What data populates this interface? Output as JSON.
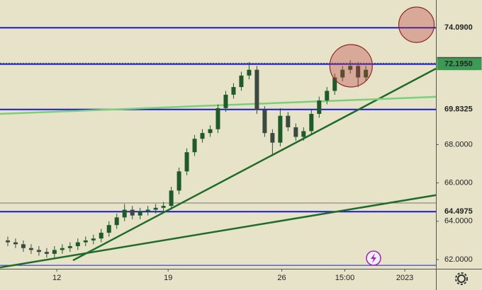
{
  "chart_data": {
    "type": "candlestick",
    "x": [
      0,
      1,
      2,
      3,
      4,
      5,
      6,
      7,
      8,
      9,
      10,
      11,
      12,
      13,
      14,
      15,
      16,
      17,
      18,
      19,
      20,
      21,
      22,
      23,
      24,
      25,
      26,
      27,
      28,
      29,
      30,
      31,
      32,
      33,
      34,
      35,
      36,
      37,
      38,
      39,
      40,
      41,
      42,
      43,
      44,
      45,
      46
    ],
    "open": [
      63.0,
      62.9,
      62.8,
      62.6,
      62.5,
      62.4,
      62.3,
      62.5,
      62.6,
      62.7,
      62.9,
      63.0,
      63.1,
      63.4,
      63.8,
      64.2,
      64.6,
      64.3,
      64.5,
      64.6,
      64.7,
      64.8,
      65.6,
      66.6,
      67.6,
      68.3,
      68.6,
      68.8,
      69.9,
      70.6,
      71.0,
      71.6,
      71.9,
      69.8,
      68.6,
      68.1,
      69.5,
      68.9,
      68.4,
      68.7,
      69.6,
      70.3,
      70.8,
      71.5,
      71.9,
      72.1,
      71.5
    ],
    "high": [
      63.2,
      63.1,
      63.0,
      62.8,
      62.7,
      62.6,
      62.7,
      62.8,
      62.9,
      63.1,
      63.2,
      63.3,
      63.6,
      64.0,
      64.4,
      64.9,
      64.8,
      64.7,
      64.8,
      64.9,
      65.0,
      65.8,
      66.8,
      67.8,
      68.5,
      68.8,
      69.0,
      70.1,
      70.8,
      71.2,
      71.8,
      72.3,
      72.1,
      70.0,
      68.8,
      69.9,
      69.7,
      69.1,
      68.9,
      69.8,
      70.5,
      71.0,
      71.7,
      72.1,
      72.4,
      72.3,
      72.1
    ],
    "low": [
      62.7,
      62.6,
      62.4,
      62.3,
      62.2,
      62.1,
      62.1,
      62.3,
      62.4,
      62.5,
      62.7,
      62.8,
      62.9,
      63.2,
      63.6,
      64.0,
      64.1,
      64.1,
      64.3,
      64.4,
      64.5,
      64.6,
      65.4,
      66.4,
      67.4,
      68.1,
      68.4,
      68.6,
      69.7,
      70.4,
      70.8,
      71.4,
      69.6,
      68.4,
      67.5,
      67.9,
      68.7,
      68.2,
      68.2,
      68.5,
      69.4,
      70.1,
      70.6,
      71.3,
      71.7,
      71.0,
      71.3
    ],
    "close": [
      62.9,
      62.8,
      62.6,
      62.5,
      62.4,
      62.3,
      62.5,
      62.6,
      62.7,
      62.9,
      63.0,
      63.1,
      63.4,
      63.8,
      64.2,
      64.6,
      64.3,
      64.5,
      64.6,
      64.7,
      64.8,
      65.6,
      66.6,
      67.6,
      68.3,
      68.6,
      68.8,
      69.9,
      70.6,
      71.0,
      71.6,
      71.9,
      69.8,
      68.6,
      68.1,
      69.5,
      68.9,
      68.4,
      68.7,
      69.6,
      70.3,
      70.8,
      71.5,
      71.9,
      72.1,
      71.5,
      71.9
    ],
    "up_color": "#1f5a2a",
    "down_color": "#3a4a40",
    "xlim": [
      -1,
      55
    ],
    "ylim": [
      61.52,
      75.54
    ],
    "xticks": [
      {
        "value": 6.3,
        "label": "12"
      },
      {
        "value": 20.6,
        "label": "19"
      },
      {
        "value": 35.2,
        "label": "26"
      },
      {
        "value": 43.3,
        "label": "15:00"
      },
      {
        "value": 51,
        "label": "2023"
      }
    ],
    "yticks": [
      {
        "value": 62,
        "label": "62.0000"
      },
      {
        "value": 64,
        "label": "64.0000"
      },
      {
        "value": 66,
        "label": "66.0000"
      },
      {
        "value": 68,
        "label": "68.0000"
      }
    ],
    "levels": [
      {
        "value": 74.09,
        "label": "74.0900"
      },
      {
        "value": 72.195,
        "label": "72.1950"
      },
      {
        "value": 69.8325,
        "label": "69.8325"
      },
      {
        "value": 64.4975,
        "label": "64.4975"
      }
    ],
    "level_color": "#1a1ad0",
    "extra_levels": [
      61.7
    ],
    "dotted_level": {
      "value": 72.2475,
      "label": "72.2475"
    },
    "gray_level": 64.95,
    "last_price": {
      "value": 72.195,
      "label": "72.1950"
    },
    "trendlines": [
      {
        "color": "#1f6b2a",
        "points": [
          [
            8.38,
            61.96
          ],
          [
            55,
            71.96
          ]
        ]
      },
      {
        "color": "#1f6b2a",
        "points": [
          [
            -1,
            61.59
          ],
          [
            55,
            65.36
          ]
        ]
      },
      {
        "color": "#7ccf7a",
        "points": [
          [
            -1,
            69.6
          ],
          [
            55,
            70.49
          ]
        ]
      }
    ],
    "circles": [
      {
        "x": 52.5,
        "y": 74.25
      },
      {
        "x": 44.1,
        "y": 72.11
      }
    ]
  }
}
